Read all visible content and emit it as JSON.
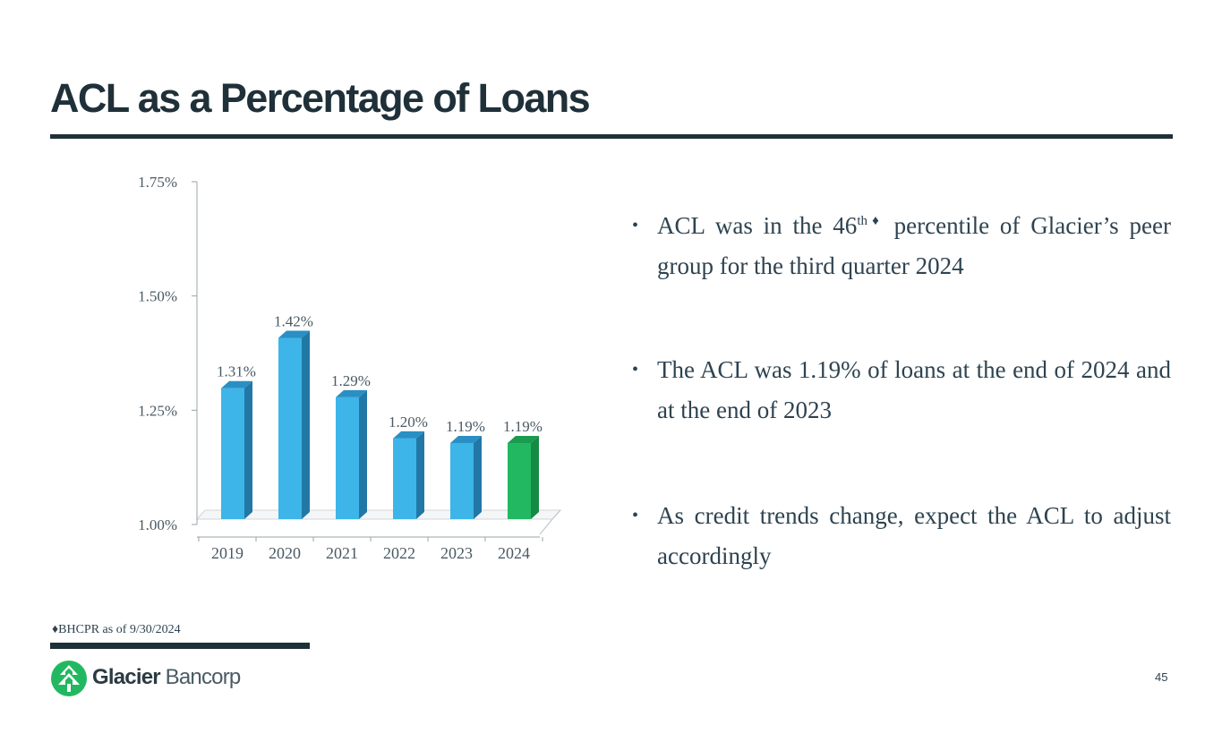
{
  "slide": {
    "title": "ACL as a Percentage of Loans",
    "page_number": "45"
  },
  "bullets": [
    {
      "before_sup": "ACL was in the 46",
      "sup": "th♦",
      "after_sup": " percentile of Glacier’s peer group for the third quarter 2024"
    },
    {
      "text": "The ACL was 1.19% of loans at the end of 2024 and at the end of 2023"
    },
    {
      "text": "As credit trends change, expect the ACL to adjust accordingly"
    }
  ],
  "bullet_glyph": "•",
  "footnote": "♦BHCPR as of 9/30/2024",
  "logo": {
    "brand_bold": "Glacier",
    "brand_light": "Bancorp"
  },
  "colors": {
    "title": "#1f3039",
    "bar": "#3db5e8",
    "bar_highlight": "#22b861",
    "text": "#2e4350"
  },
  "chart_data": {
    "type": "bar",
    "categories": [
      "2019",
      "2020",
      "2021",
      "2022",
      "2023",
      "2024"
    ],
    "values": [
      1.31,
      1.42,
      1.29,
      1.2,
      1.19,
      1.19
    ],
    "data_labels": [
      "1.31%",
      "1.42%",
      "1.29%",
      "1.20%",
      "1.19%",
      "1.19%"
    ],
    "highlight_index": 5,
    "ylim": [
      1.0,
      1.75
    ],
    "yticks": [
      1.0,
      1.25,
      1.5,
      1.75
    ],
    "ytick_labels": [
      "1.00%",
      "1.25%",
      "1.50%",
      "1.75%"
    ],
    "title": "",
    "xlabel": "",
    "ylabel": "",
    "grid": false,
    "style": "3d-column"
  }
}
